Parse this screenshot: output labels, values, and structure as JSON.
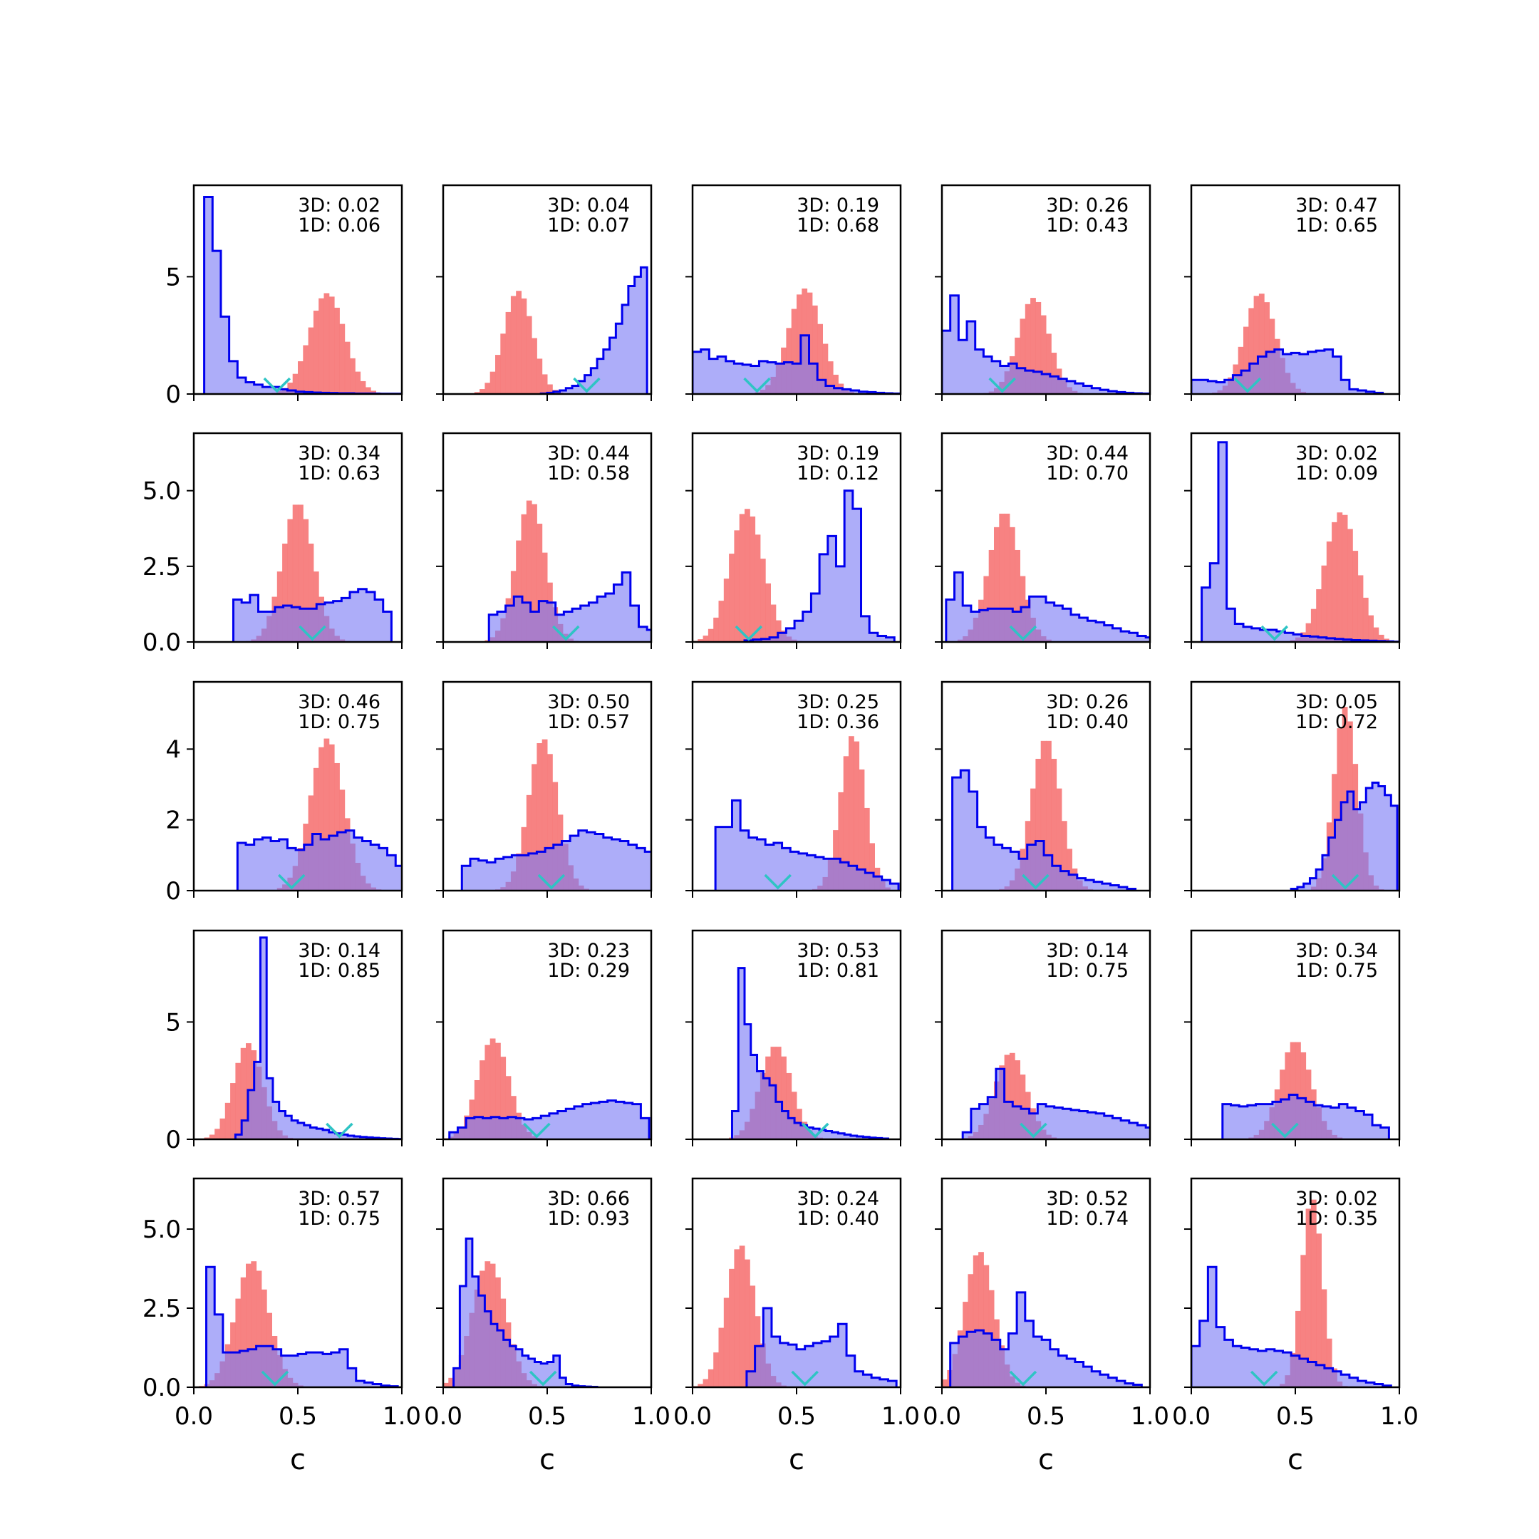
{
  "figure": {
    "grid": {
      "rows": 5,
      "cols": 5
    },
    "colors": {
      "blue_fill": "#7a7af5",
      "blue_edge": "#0000ee",
      "red_fill": "#f77b7b",
      "marker": "#2ec4c4",
      "axes": "#000000"
    },
    "x_tick_labels": [
      "0.0",
      "0.5",
      "1.0"
    ],
    "row_y_ticks": [
      {
        "values": [
          0,
          5
        ],
        "labels": [
          "0",
          "5"
        ],
        "ymax": 8.9
      },
      {
        "values": [
          0,
          2.5,
          5.0
        ],
        "labels": [
          "0.0",
          "2.5",
          "5.0"
        ],
        "ymax": 6.9
      },
      {
        "values": [
          0,
          2,
          4
        ],
        "labels": [
          "0",
          "2",
          "4"
        ],
        "ymax": 5.9
      },
      {
        "values": [
          0,
          5
        ],
        "labels": [
          "0",
          "5"
        ],
        "ymax": 8.9
      },
      {
        "values": [
          0,
          2.5,
          5.0
        ],
        "labels": [
          "0.0",
          "2.5",
          "5.0"
        ],
        "ymax": 6.6
      }
    ]
  },
  "chart_data": [
    {
      "type": "histogram",
      "xlabel": "",
      "xlim": [
        0,
        1
      ],
      "annot_3d": "3D: 0.02",
      "annot_1d": "1D: 0.06",
      "marker_x": 0.4,
      "blue": {
        "start": 0.05,
        "bin": 0.04,
        "values": [
          8.4,
          6.1,
          3.3,
          1.4,
          0.7,
          0.5,
          0.4,
          0.3,
          0.3,
          0.2,
          0.15,
          0.1,
          0.08,
          0.06,
          0.05,
          0.04,
          0.03,
          0.03,
          0.02,
          0.02,
          0.02,
          0.01,
          0.01,
          0.01
        ]
      },
      "red": {
        "center": 0.64,
        "sigma": 0.085,
        "peak": 4.3
      }
    },
    {
      "type": "histogram",
      "xlabel": "",
      "xlim": [
        0,
        1
      ],
      "annot_3d": "3D: 0.04",
      "annot_1d": "1D: 0.07",
      "marker_x": 0.69,
      "blue": {
        "start": 0.47,
        "bin": 0.03,
        "values": [
          0.02,
          0.05,
          0.1,
          0.15,
          0.25,
          0.35,
          0.55,
          0.8,
          1.1,
          1.5,
          1.9,
          2.4,
          3.0,
          3.8,
          4.6,
          5.0,
          5.4
        ]
      },
      "red": {
        "center": 0.36,
        "sigma": 0.07,
        "peak": 4.4
      }
    },
    {
      "type": "histogram",
      "xlabel": "",
      "xlim": [
        0,
        1
      ],
      "annot_3d": "3D: 0.19",
      "annot_1d": "1D: 0.68",
      "marker_x": 0.31,
      "blue": {
        "start": 0.0,
        "bin": 0.04,
        "values": [
          1.8,
          1.9,
          1.5,
          1.6,
          1.4,
          1.3,
          1.25,
          1.2,
          1.4,
          1.35,
          1.3,
          1.35,
          1.3,
          2.5,
          1.3,
          0.6,
          0.35,
          0.25,
          0.2,
          0.15,
          0.1,
          0.08,
          0.05,
          0.03,
          0.02
        ]
      },
      "red": {
        "center": 0.54,
        "sigma": 0.08,
        "peak": 4.5
      }
    },
    {
      "type": "histogram",
      "xlabel": "",
      "xlim": [
        0,
        1
      ],
      "annot_3d": "3D: 0.26",
      "annot_1d": "1D: 0.43",
      "marker_x": 0.29,
      "blue": {
        "start": 0.0,
        "bin": 0.04,
        "values": [
          2.7,
          4.2,
          2.3,
          3.1,
          1.9,
          1.6,
          1.4,
          1.2,
          1.3,
          1.1,
          1.0,
          0.95,
          0.85,
          0.75,
          0.65,
          0.55,
          0.45,
          0.35,
          0.25,
          0.18,
          0.12,
          0.08,
          0.05,
          0.03,
          0.02
        ]
      },
      "red": {
        "center": 0.44,
        "sigma": 0.075,
        "peak": 4.1
      }
    },
    {
      "type": "histogram",
      "xlabel": "",
      "xlim": [
        0,
        1
      ],
      "annot_3d": "3D: 0.47",
      "annot_1d": "1D: 0.65",
      "marker_x": 0.27,
      "blue": {
        "start": 0.0,
        "bin": 0.04,
        "values": [
          0.6,
          0.6,
          0.55,
          0.5,
          0.6,
          0.8,
          1.0,
          1.3,
          1.6,
          1.8,
          1.9,
          1.7,
          1.75,
          1.7,
          1.8,
          1.85,
          1.9,
          1.6,
          0.6,
          0.2,
          0.15,
          0.1,
          0.05
        ]
      },
      "red": {
        "center": 0.33,
        "sigma": 0.075,
        "peak": 4.3
      }
    },
    {
      "type": "histogram",
      "xlabel": "",
      "xlim": [
        0,
        1
      ],
      "annot_3d": "3D: 0.34",
      "annot_1d": "1D: 0.63",
      "marker_x": 0.57,
      "blue": {
        "start": 0.19,
        "bin": 0.04,
        "values": [
          1.4,
          1.3,
          1.55,
          1.0,
          1.0,
          1.15,
          1.2,
          1.15,
          1.1,
          1.1,
          1.25,
          1.3,
          1.35,
          1.45,
          1.65,
          1.75,
          1.65,
          1.4,
          1.0
        ]
      },
      "red": {
        "center": 0.5,
        "sigma": 0.075,
        "peak": 4.6
      }
    },
    {
      "type": "histogram",
      "xlabel": "",
      "xlim": [
        0,
        1
      ],
      "annot_3d": "3D: 0.44",
      "annot_1d": "1D: 0.58",
      "marker_x": 0.59,
      "blue": {
        "start": 0.22,
        "bin": 0.04,
        "values": [
          0.9,
          1.0,
          1.2,
          1.5,
          1.3,
          1.0,
          1.35,
          1.3,
          0.9,
          1.0,
          1.1,
          1.2,
          1.3,
          1.5,
          1.6,
          1.9,
          2.3,
          1.2,
          0.5,
          0.4
        ]
      },
      "red": {
        "center": 0.42,
        "sigma": 0.07,
        "peak": 4.7
      }
    },
    {
      "type": "histogram",
      "xlabel": "",
      "xlim": [
        0,
        1
      ],
      "annot_3d": "3D: 0.19",
      "annot_1d": "1D: 0.12",
      "marker_x": 0.27,
      "blue": {
        "start": 0.25,
        "bin": 0.04,
        "values": [
          0.05,
          0.08,
          0.1,
          0.15,
          0.3,
          0.45,
          0.7,
          1.0,
          1.6,
          2.9,
          3.5,
          2.5,
          5.0,
          4.4,
          0.85,
          0.3,
          0.2,
          0.15
        ]
      },
      "red": {
        "center": 0.26,
        "sigma": 0.08,
        "peak": 4.4
      }
    },
    {
      "type": "histogram",
      "xlabel": "",
      "xlim": [
        0,
        1
      ],
      "annot_3d": "3D: 0.44",
      "annot_1d": "1D: 0.70",
      "marker_x": 0.39,
      "blue": {
        "start": 0.02,
        "bin": 0.04,
        "values": [
          1.4,
          2.3,
          1.2,
          1.0,
          1.05,
          1.1,
          1.1,
          1.1,
          1.0,
          1.15,
          1.5,
          1.5,
          1.3,
          1.2,
          1.1,
          0.9,
          0.8,
          0.7,
          0.65,
          0.55,
          0.45,
          0.35,
          0.3,
          0.2,
          0.15
        ]
      },
      "red": {
        "center": 0.3,
        "sigma": 0.075,
        "peak": 4.3
      }
    },
    {
      "type": "histogram",
      "xlabel": "",
      "xlim": [
        0,
        1
      ],
      "annot_3d": "3D: 0.02",
      "annot_1d": "1D: 0.09",
      "marker_x": 0.4,
      "blue": {
        "start": 0.05,
        "bin": 0.04,
        "values": [
          1.8,
          2.6,
          6.6,
          1.1,
          0.6,
          0.5,
          0.45,
          0.4,
          0.4,
          0.35,
          0.3,
          0.25,
          0.2,
          0.18,
          0.15,
          0.12,
          0.1,
          0.08,
          0.06,
          0.05,
          0.04,
          0.03,
          0.02,
          0.01
        ]
      },
      "red": {
        "center": 0.72,
        "sigma": 0.08,
        "peak": 4.3
      }
    },
    {
      "type": "histogram",
      "xlabel": "",
      "xlim": [
        0,
        1
      ],
      "annot_3d": "3D: 0.46",
      "annot_1d": "1D: 0.75",
      "marker_x": 0.47,
      "blue": {
        "start": 0.21,
        "bin": 0.04,
        "values": [
          1.35,
          1.3,
          1.45,
          1.5,
          1.4,
          1.45,
          1.2,
          1.15,
          1.3,
          1.6,
          1.45,
          1.55,
          1.65,
          1.7,
          1.5,
          1.4,
          1.3,
          1.2,
          1.0,
          0.7,
          0.35
        ]
      },
      "red": {
        "center": 0.64,
        "sigma": 0.08,
        "peak": 4.3
      }
    },
    {
      "type": "histogram",
      "xlabel": "",
      "xlim": [
        0,
        1
      ],
      "annot_3d": "3D: 0.50",
      "annot_1d": "1D: 0.57",
      "marker_x": 0.52,
      "blue": {
        "start": 0.09,
        "bin": 0.04,
        "values": [
          0.7,
          0.9,
          0.85,
          0.8,
          0.9,
          0.95,
          1.0,
          1.0,
          1.05,
          1.1,
          1.2,
          1.3,
          1.4,
          1.55,
          1.7,
          1.65,
          1.6,
          1.5,
          1.45,
          1.4,
          1.3,
          1.2,
          1.1,
          0.8
        ]
      },
      "red": {
        "center": 0.48,
        "sigma": 0.07,
        "peak": 4.3
      }
    },
    {
      "type": "histogram",
      "xlabel": "",
      "xlim": [
        0,
        1
      ],
      "annot_3d": "3D: 0.25",
      "annot_1d": "1D: 0.36",
      "marker_x": 0.41,
      "blue": {
        "start": 0.11,
        "bin": 0.04,
        "values": [
          1.8,
          1.8,
          2.55,
          1.7,
          1.5,
          1.45,
          1.3,
          1.35,
          1.2,
          1.1,
          1.05,
          1.0,
          0.95,
          0.9,
          0.9,
          0.8,
          0.7,
          0.6,
          0.5,
          0.4,
          0.3,
          0.2
        ]
      },
      "red": {
        "center": 0.77,
        "sigma": 0.06,
        "peak": 4.4
      }
    },
    {
      "type": "histogram",
      "xlabel": "",
      "xlim": [
        0,
        1
      ],
      "annot_3d": "3D: 0.26",
      "annot_1d": "1D: 0.40",
      "marker_x": 0.45,
      "blue": {
        "start": 0.05,
        "bin": 0.04,
        "values": [
          3.2,
          3.4,
          2.8,
          1.8,
          1.5,
          1.3,
          1.2,
          1.1,
          0.9,
          1.3,
          1.4,
          1.0,
          0.7,
          0.55,
          0.45,
          0.35,
          0.3,
          0.25,
          0.2,
          0.15,
          0.1,
          0.05
        ]
      },
      "red": {
        "center": 0.5,
        "sigma": 0.07,
        "peak": 4.3
      }
    },
    {
      "type": "histogram",
      "xlabel": "",
      "xlim": [
        0,
        1
      ],
      "annot_3d": "3D: 0.05",
      "annot_1d": "1D: 0.72",
      "marker_x": 0.74,
      "blue": {
        "start": 0.48,
        "bin": 0.03,
        "values": [
          0.05,
          0.1,
          0.2,
          0.35,
          0.6,
          1.0,
          1.5,
          2.0,
          2.5,
          2.8,
          2.3,
          2.5,
          2.9,
          3.05,
          2.95,
          2.7,
          2.4
        ]
      },
      "red": {
        "center": 0.74,
        "sigma": 0.055,
        "peak": 5.2
      }
    },
    {
      "type": "histogram",
      "xlabel": "",
      "xlim": [
        0,
        1
      ],
      "annot_3d": "3D: 0.14",
      "annot_1d": "1D: 0.85",
      "marker_x": 0.7,
      "blue": {
        "start": 0.2,
        "bin": 0.03,
        "values": [
          0.2,
          0.8,
          2.1,
          3.3,
          8.6,
          2.6,
          1.6,
          1.2,
          1.0,
          0.8,
          0.7,
          0.6,
          0.5,
          0.45,
          0.4,
          0.3,
          0.25,
          0.2,
          0.15,
          0.12,
          0.1,
          0.08,
          0.06,
          0.04,
          0.03,
          0.02,
          0.01
        ]
      },
      "red": {
        "center": 0.26,
        "sigma": 0.07,
        "peak": 4.1
      }
    },
    {
      "type": "histogram",
      "xlabel": "",
      "xlim": [
        0,
        1
      ],
      "annot_3d": "3D: 0.23",
      "annot_1d": "1D: 0.29",
      "marker_x": 0.45,
      "blue": {
        "start": 0.03,
        "bin": 0.04,
        "values": [
          0.3,
          0.5,
          0.9,
          0.95,
          0.9,
          0.95,
          0.9,
          0.95,
          0.9,
          0.85,
          0.9,
          1.0,
          1.1,
          1.2,
          1.3,
          1.4,
          1.5,
          1.55,
          1.6,
          1.65,
          1.6,
          1.55,
          1.5,
          0.9
        ]
      },
      "red": {
        "center": 0.24,
        "sigma": 0.075,
        "peak": 4.3
      }
    },
    {
      "type": "histogram",
      "xlabel": "",
      "xlim": [
        0,
        1
      ],
      "annot_3d": "3D: 0.53",
      "annot_1d": "1D: 0.81",
      "marker_x": 0.59,
      "blue": {
        "start": 0.19,
        "bin": 0.03,
        "values": [
          1.2,
          7.3,
          4.9,
          3.6,
          2.9,
          2.6,
          2.3,
          1.6,
          1.2,
          0.9,
          0.7,
          0.6,
          0.5,
          0.45,
          0.4,
          0.35,
          0.3,
          0.25,
          0.2,
          0.15,
          0.12,
          0.1,
          0.07,
          0.05,
          0.03
        ]
      },
      "red": {
        "center": 0.4,
        "sigma": 0.075,
        "peak": 4.0
      }
    },
    {
      "type": "histogram",
      "xlabel": "",
      "xlim": [
        0,
        1
      ],
      "annot_3d": "3D: 0.14",
      "annot_1d": "1D: 0.75",
      "marker_x": 0.44,
      "blue": {
        "start": 0.1,
        "bin": 0.04,
        "values": [
          0.3,
          1.3,
          1.5,
          1.8,
          3.0,
          1.6,
          1.4,
          1.3,
          1.1,
          1.5,
          1.4,
          1.35,
          1.3,
          1.25,
          1.2,
          1.15,
          1.1,
          1.0,
          0.9,
          0.8,
          0.7,
          0.6,
          0.5,
          0.3
        ]
      },
      "red": {
        "center": 0.33,
        "sigma": 0.075,
        "peak": 3.7
      }
    },
    {
      "type": "histogram",
      "xlabel": "",
      "xlim": [
        0,
        1
      ],
      "annot_3d": "3D: 0.34",
      "annot_1d": "1D: 0.75",
      "marker_x": 0.45,
      "blue": {
        "start": 0.15,
        "bin": 0.04,
        "values": [
          1.5,
          1.45,
          1.4,
          1.45,
          1.5,
          1.5,
          1.6,
          1.7,
          1.9,
          1.75,
          1.6,
          1.45,
          1.4,
          1.35,
          1.5,
          1.35,
          1.2,
          1.05,
          0.6,
          0.5
        ]
      },
      "red": {
        "center": 0.5,
        "sigma": 0.075,
        "peak": 4.2
      }
    },
    {
      "type": "histogram",
      "xlabel": "c",
      "xlim": [
        0,
        1
      ],
      "annot_3d": "3D: 0.57",
      "annot_1d": "1D: 0.75",
      "marker_x": 0.39,
      "blue": {
        "start": 0.06,
        "bin": 0.04,
        "values": [
          3.8,
          2.3,
          1.1,
          1.1,
          1.15,
          1.2,
          1.3,
          1.3,
          1.2,
          1.0,
          1.0,
          1.05,
          1.1,
          1.1,
          1.05,
          1.1,
          1.2,
          0.6,
          0.2,
          0.15,
          0.1,
          0.05,
          0.03
        ]
      },
      "red": {
        "center": 0.28,
        "sigma": 0.08,
        "peak": 4.0
      }
    },
    {
      "type": "histogram",
      "xlabel": "c",
      "xlim": [
        0,
        1
      ],
      "annot_3d": "3D: 0.66",
      "annot_1d": "1D: 0.93",
      "marker_x": 0.48,
      "blue": {
        "start": 0.05,
        "bin": 0.03,
        "values": [
          0.6,
          3.2,
          4.7,
          3.5,
          2.9,
          2.4,
          2.0,
          1.8,
          1.5,
          1.3,
          1.2,
          1.0,
          0.9,
          0.8,
          0.75,
          0.8,
          1.0,
          0.3,
          0.1,
          0.05,
          0.03,
          0.02,
          0.01
        ]
      },
      "red": {
        "center": 0.22,
        "sigma": 0.08,
        "peak": 4.0
      }
    },
    {
      "type": "histogram",
      "xlabel": "c",
      "xlim": [
        0,
        1
      ],
      "annot_3d": "3D: 0.24",
      "annot_1d": "1D: 0.40",
      "marker_x": 0.54,
      "blue": {
        "start": 0.26,
        "bin": 0.04,
        "values": [
          0.5,
          1.3,
          2.5,
          1.6,
          1.4,
          1.35,
          1.2,
          1.3,
          1.4,
          1.45,
          1.6,
          2.0,
          1.0,
          0.5,
          0.4,
          0.3,
          0.25,
          0.2
        ]
      },
      "red": {
        "center": 0.23,
        "sigma": 0.07,
        "peak": 4.5
      }
    },
    {
      "type": "histogram",
      "xlabel": "c",
      "xlim": [
        0,
        1
      ],
      "annot_3d": "3D: 0.52",
      "annot_1d": "1D: 0.74",
      "marker_x": 0.39,
      "blue": {
        "start": 0.04,
        "bin": 0.04,
        "values": [
          1.4,
          1.6,
          1.75,
          1.8,
          1.7,
          1.5,
          1.2,
          1.7,
          3.0,
          2.1,
          1.6,
          1.5,
          1.2,
          1.0,
          0.9,
          0.8,
          0.65,
          0.5,
          0.4,
          0.3,
          0.2,
          0.12,
          0.08
        ]
      },
      "red": {
        "center": 0.18,
        "sigma": 0.07,
        "peak": 4.3
      }
    },
    {
      "type": "histogram",
      "xlabel": "c",
      "xlim": [
        0,
        1
      ],
      "annot_3d": "3D: 0.02",
      "annot_1d": "1D: 0.35",
      "marker_x": 0.35,
      "blue": {
        "start": 0.0,
        "bin": 0.04,
        "values": [
          1.3,
          2.1,
          3.8,
          1.9,
          1.5,
          1.3,
          1.25,
          1.2,
          1.15,
          1.2,
          1.15,
          1.1,
          1.0,
          0.9,
          0.8,
          0.7,
          0.6,
          0.5,
          0.4,
          0.3,
          0.2,
          0.15,
          0.1,
          0.05
        ]
      },
      "red": {
        "center": 0.58,
        "sigma": 0.05,
        "peak": 6.0
      }
    }
  ]
}
